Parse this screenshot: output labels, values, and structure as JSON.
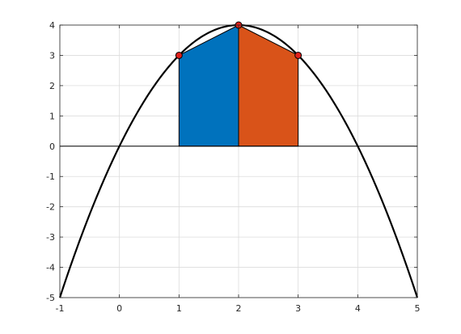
{
  "chart_data": {
    "type": "line",
    "title": "",
    "xlabel": "",
    "ylabel": "",
    "xlim": [
      -1,
      5
    ],
    "ylim": [
      -5,
      4
    ],
    "grid": true,
    "xticks": [
      "-1",
      "0",
      "1",
      "2",
      "3",
      "4",
      "5"
    ],
    "yticks": [
      "4",
      "3",
      "2",
      "1",
      "0",
      "-1",
      "-2",
      "-3",
      "-4",
      "-5"
    ],
    "curve": {
      "expression": "y = 4x - x^2",
      "color": "#000000"
    },
    "points": [
      {
        "x": 1,
        "y": 3
      },
      {
        "x": 2,
        "y": 4
      },
      {
        "x": 3,
        "y": 3
      }
    ],
    "trapezoids": [
      {
        "x0": 1,
        "x1": 2,
        "y0": 3,
        "y1": 4,
        "color": "#0072BD"
      },
      {
        "x0": 2,
        "x1": 3,
        "y0": 4,
        "y1": 3,
        "color": "#D95319"
      }
    ],
    "point_color": "#E0201B"
  }
}
